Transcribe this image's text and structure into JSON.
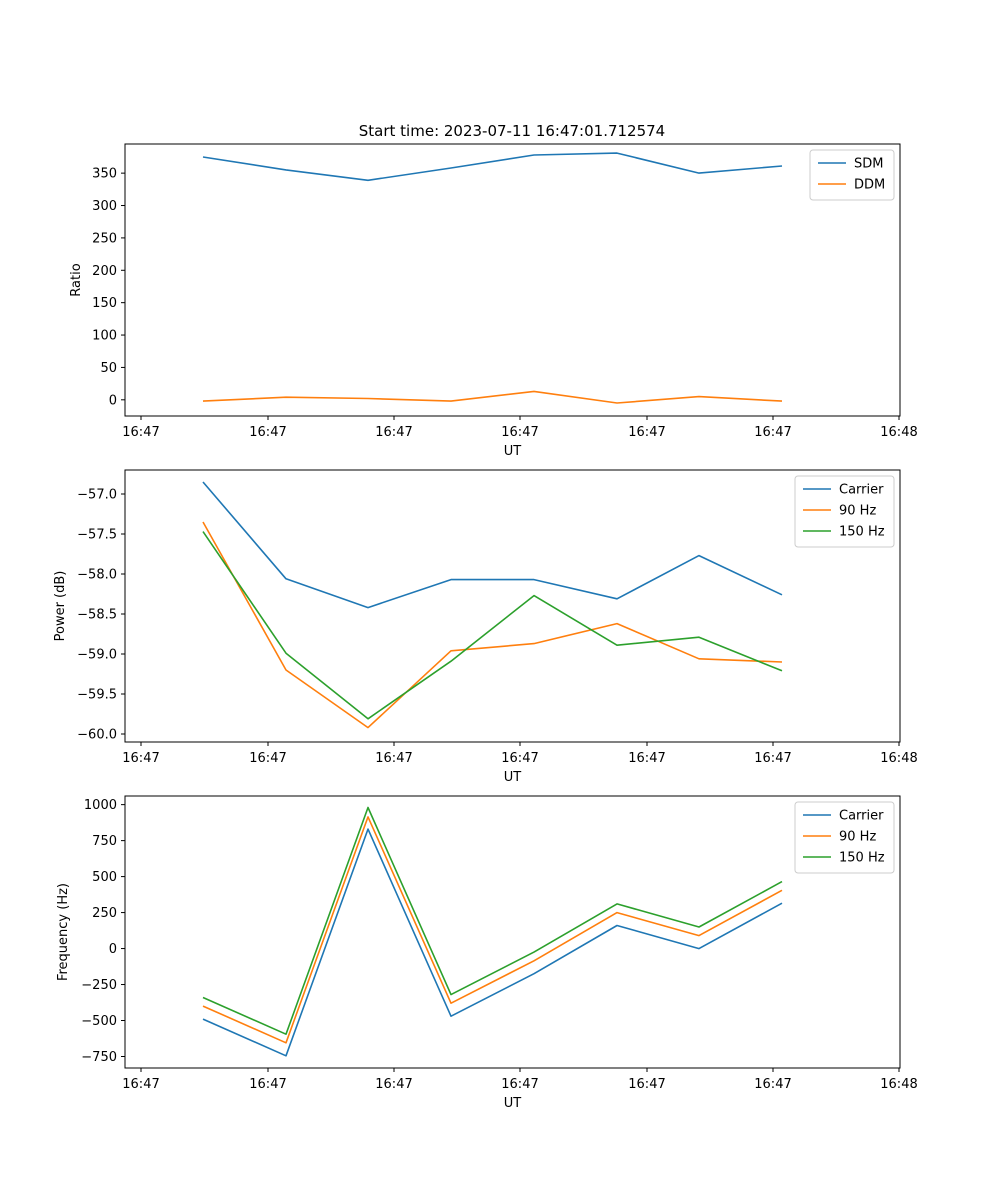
{
  "figure_title": "Start time: 2023-07-11 16:47:01.712574",
  "colors": {
    "blue": "#1f77b4",
    "orange": "#ff7f0e",
    "green": "#2ca02c"
  },
  "chart_data": [
    {
      "type": "line",
      "title": "Start time: 2023-07-11 16:47:01.712574",
      "xlabel": "UT",
      "ylabel": "Ratio",
      "x_tick_labels": [
        "16:47",
        "16:47",
        "16:47",
        "16:47",
        "16:47",
        "16:47",
        "16:48"
      ],
      "yticks": [
        0,
        50,
        100,
        150,
        200,
        250,
        300,
        350
      ],
      "ylim": [
        -25,
        395
      ],
      "legend_position": "upper-right",
      "series": [
        {
          "name": "SDM",
          "color": "#1f77b4",
          "values": [
            375,
            355,
            339,
            358,
            378,
            381,
            350,
            361
          ]
        },
        {
          "name": "DDM",
          "color": "#ff7f0e",
          "values": [
            -2,
            4,
            2,
            -2,
            13,
            -5,
            5,
            -2
          ]
        }
      ]
    },
    {
      "type": "line",
      "title": "",
      "xlabel": "UT",
      "ylabel": "Power (dB)",
      "x_tick_labels": [
        "16:47",
        "16:47",
        "16:47",
        "16:47",
        "16:47",
        "16:47",
        "16:48"
      ],
      "yticks": [
        -60.0,
        -59.5,
        -59.0,
        -58.5,
        -58.0,
        -57.5,
        -57.0
      ],
      "ytick_decimals": 1,
      "ylim": [
        -60.1,
        -56.7
      ],
      "legend_position": "upper-right",
      "series": [
        {
          "name": "Carrier",
          "color": "#1f77b4",
          "values": [
            -56.85,
            -58.06,
            -58.42,
            -58.07,
            -58.07,
            -58.31,
            -57.77,
            -58.26
          ]
        },
        {
          "name": "90 Hz",
          "color": "#ff7f0e",
          "values": [
            -57.35,
            -59.2,
            -59.92,
            -58.96,
            -58.87,
            -58.62,
            -59.06,
            -59.1
          ]
        },
        {
          "name": "150 Hz",
          "color": "#2ca02c",
          "values": [
            -57.47,
            -58.99,
            -59.81,
            -59.09,
            -58.27,
            -58.89,
            -58.79,
            -59.21
          ]
        }
      ]
    },
    {
      "type": "line",
      "title": "",
      "xlabel": "UT",
      "ylabel": "Frequency (Hz)",
      "x_tick_labels": [
        "16:47",
        "16:47",
        "16:47",
        "16:47",
        "16:47",
        "16:47",
        "16:48"
      ],
      "yticks": [
        -750,
        -500,
        -250,
        0,
        250,
        500,
        750,
        1000
      ],
      "ylim": [
        -830,
        1060
      ],
      "legend_position": "upper-right",
      "series": [
        {
          "name": "Carrier",
          "color": "#1f77b4",
          "values": [
            -490,
            -745,
            830,
            -470,
            -175,
            160,
            0,
            315
          ]
        },
        {
          "name": "90 Hz",
          "color": "#ff7f0e",
          "values": [
            -400,
            -655,
            915,
            -380,
            -85,
            250,
            90,
            405
          ]
        },
        {
          "name": "150 Hz",
          "color": "#2ca02c",
          "values": [
            -340,
            -595,
            980,
            -320,
            -25,
            310,
            150,
            465
          ]
        }
      ]
    }
  ]
}
